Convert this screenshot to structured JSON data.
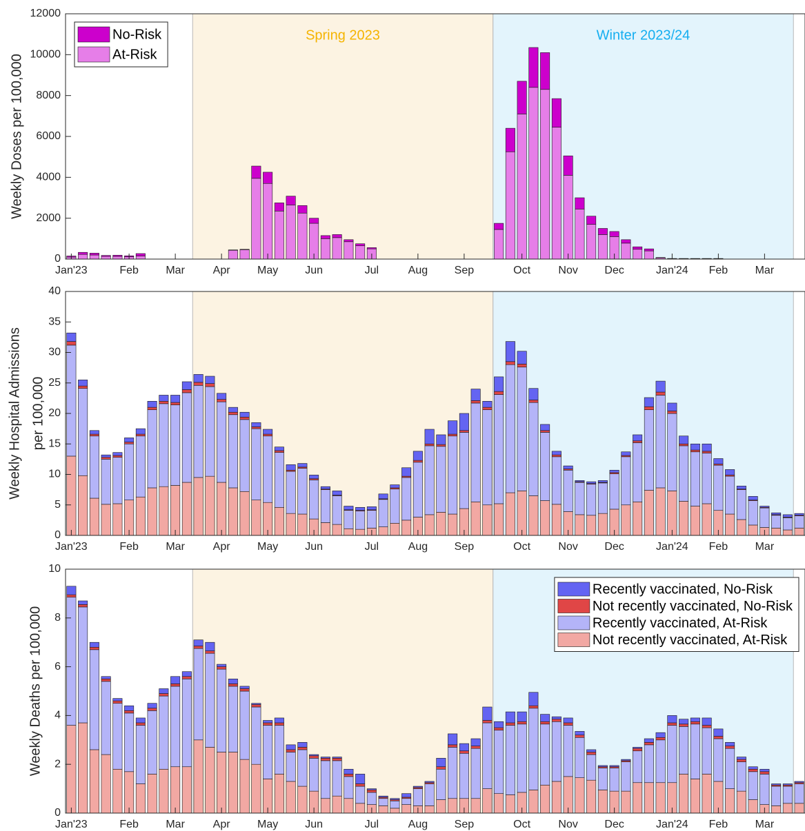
{
  "chart_data": [
    {
      "type": "bar",
      "stacked": true,
      "ylabel": "Weekly Doses per 100,000",
      "categories": [
        "Jan'23",
        null,
        null,
        null,
        null,
        "Feb",
        null,
        null,
        null,
        "Mar",
        null,
        null,
        null,
        "Apr",
        null,
        null,
        null,
        "May",
        null,
        null,
        null,
        "Jun",
        null,
        null,
        null,
        null,
        "Jul",
        null,
        null,
        null,
        "Aug",
        null,
        null,
        null,
        "Sep",
        null,
        null,
        null,
        null,
        "Oct",
        null,
        null,
        null,
        "Nov",
        null,
        null,
        null,
        "Dec",
        null,
        null,
        null,
        null,
        "Jan'24",
        null,
        null,
        null,
        "Feb",
        null,
        null,
        null,
        "Mar",
        null,
        null,
        null
      ],
      "series": [
        {
          "name": "At-Risk",
          "color": "#e67ee8",
          "values": [
            100,
            230,
            200,
            130,
            130,
            110,
            150,
            0,
            0,
            0,
            0,
            0,
            0,
            0,
            430,
            460,
            3950,
            3700,
            2350,
            2650,
            2250,
            1750,
            1000,
            1050,
            850,
            650,
            500,
            0,
            0,
            0,
            0,
            0,
            0,
            0,
            0,
            0,
            0,
            1450,
            5250,
            7100,
            8400,
            8300,
            6450,
            4100,
            2450,
            1700,
            1200,
            1100,
            780,
            480,
            400,
            60,
            20,
            20,
            20,
            20,
            20,
            0,
            0,
            0,
            0,
            0,
            0,
            0
          ]
        },
        {
          "name": "No-Risk",
          "color": "#cc00cc",
          "values": [
            50,
            100,
            90,
            50,
            60,
            50,
            120,
            0,
            0,
            0,
            0,
            0,
            0,
            0,
            20,
            20,
            600,
            550,
            400,
            430,
            370,
            250,
            150,
            150,
            100,
            100,
            60,
            0,
            0,
            0,
            0,
            0,
            0,
            0,
            0,
            0,
            0,
            300,
            1150,
            1600,
            1950,
            1800,
            1400,
            950,
            550,
            400,
            300,
            250,
            170,
            120,
            100,
            20,
            10,
            10,
            10,
            10,
            10,
            0,
            0,
            0,
            0,
            0,
            0,
            0
          ]
        }
      ],
      "ylim": [
        0,
        12000
      ],
      "yticks": [
        0,
        2000,
        4000,
        6000,
        8000,
        10000,
        12000
      ],
      "grid": false,
      "legend": "upper left",
      "periods": [
        {
          "label": "Spring 2023",
          "from": 11,
          "to": 36,
          "color": "#fcf3e2",
          "label_color": "#f5b400"
        },
        {
          "label": "Winter 2023/24",
          "from": 37,
          "to": 62,
          "color": "#e3f4fc",
          "label_color": "#15aef0"
        }
      ]
    },
    {
      "type": "bar",
      "stacked": true,
      "ylabel": [
        "Weekly Hospital Admissions",
        "per 100,000"
      ],
      "categories": [
        "Jan'23",
        null,
        null,
        null,
        null,
        "Feb",
        null,
        null,
        null,
        "Mar",
        null,
        null,
        null,
        "Apr",
        null,
        null,
        null,
        "May",
        null,
        null,
        null,
        "Jun",
        null,
        null,
        null,
        null,
        "Jul",
        null,
        null,
        null,
        "Aug",
        null,
        null,
        null,
        "Sep",
        null,
        null,
        null,
        null,
        "Oct",
        null,
        null,
        null,
        "Nov",
        null,
        null,
        null,
        "Dec",
        null,
        null,
        null,
        null,
        "Jan'24",
        null,
        null,
        null,
        "Feb",
        null,
        null,
        null,
        "Mar",
        null,
        null,
        null
      ],
      "series": [
        {
          "color": "#f2a8a3",
          "values": [
            13,
            9.8,
            6.1,
            5.1,
            5.2,
            5.8,
            6.3,
            7.8,
            8.0,
            8.2,
            8.7,
            9.5,
            9.7,
            8.7,
            7.8,
            7.2,
            5.8,
            5.4,
            4.6,
            3.6,
            3.5,
            2.7,
            2.1,
            1.8,
            1.1,
            1.0,
            1.2,
            1.4,
            2.0,
            2.5,
            3.0,
            3.4,
            3.8,
            3.5,
            4.4,
            5.5,
            5.0,
            5.2,
            7.0,
            7.3,
            6.5,
            5.7,
            5.1,
            3.9,
            3.4,
            3.3,
            3.6,
            4.3,
            5.0,
            5.5,
            7.4,
            7.8,
            7.3,
            5.6,
            4.8,
            5.2,
            4.1,
            3.5,
            2.6,
            1.7,
            1.3,
            1.2,
            0.9,
            1.2
          ]
        },
        {
          "color": "#b4b4f8",
          "values": [
            18.2,
            14.3,
            10.2,
            7.4,
            7.6,
            9.2,
            10.0,
            12.8,
            13.6,
            13.2,
            14.7,
            15.1,
            14.7,
            13.2,
            12.0,
            11.8,
            11.7,
            10.9,
            9.0,
            6.9,
            7.5,
            6.4,
            5.4,
            4.7,
            3.0,
            3.0,
            2.9,
            4.5,
            5.6,
            7.0,
            9.0,
            11.3,
            10.8,
            12.8,
            12.5,
            16.2,
            15.6,
            17.9,
            21.0,
            20.3,
            15.3,
            11.2,
            7.8,
            6.8,
            5.3,
            5.1,
            5.0,
            5.8,
            7.9,
            9.7,
            13.2,
            15.2,
            12.7,
            9.1,
            8.9,
            8.3,
            7.4,
            6.2,
            4.9,
            4.0,
            3.2,
            2.1,
            2.0,
            2.0
          ]
        },
        {
          "color": "#e04646",
          "values": [
            0.6,
            0.4,
            0.3,
            0.3,
            0.3,
            0.3,
            0.3,
            0.4,
            0.4,
            0.4,
            0.5,
            0.5,
            0.5,
            0.4,
            0.4,
            0.4,
            0.3,
            0.3,
            0.3,
            0.2,
            0.2,
            0.2,
            0.1,
            0.1,
            0.1,
            0.1,
            0.1,
            0.1,
            0.2,
            0.2,
            0.3,
            0.3,
            0.3,
            0.3,
            0.3,
            0.4,
            0.4,
            0.5,
            0.5,
            0.5,
            0.4,
            0.3,
            0.3,
            0.2,
            0.1,
            0.1,
            0.1,
            0.2,
            0.2,
            0.3,
            0.5,
            0.5,
            0.4,
            0.3,
            0.3,
            0.3,
            0.2,
            0.2,
            0.1,
            0.1,
            0.1,
            0.1,
            0.1,
            0.1
          ]
        },
        {
          "color": "#6464f2",
          "values": [
            1.4,
            1.0,
            0.6,
            0.4,
            0.5,
            0.7,
            0.9,
            1.0,
            1.0,
            1.2,
            1.3,
            1.3,
            1.2,
            1.0,
            0.8,
            0.8,
            0.7,
            0.8,
            0.6,
            0.9,
            0.6,
            0.6,
            0.4,
            0.7,
            0.6,
            0.5,
            0.5,
            0.8,
            0.5,
            1.4,
            1.5,
            2.4,
            1.6,
            2.2,
            2.8,
            1.9,
            1.0,
            2.4,
            3.3,
            2.1,
            1.9,
            1.0,
            0.6,
            0.5,
            0.2,
            0.3,
            0.3,
            0.4,
            0.6,
            1.0,
            1.5,
            1.8,
            1.3,
            1.3,
            1.0,
            1.2,
            0.9,
            0.9,
            0.5,
            0.6,
            0.2,
            0.3,
            0.4,
            0.3
          ]
        }
      ],
      "ylim": [
        0,
        40
      ],
      "yticks": [
        0,
        5,
        10,
        15,
        20,
        25,
        30,
        35,
        40
      ],
      "grid": false,
      "periods": [
        {
          "from": 11,
          "to": 36,
          "color": "#fcf3e2"
        },
        {
          "from": 37,
          "to": 62,
          "color": "#e3f4fc"
        }
      ]
    },
    {
      "type": "bar",
      "stacked": true,
      "ylabel": "Weekly Deaths per 100,000",
      "categories": [
        "Jan'23",
        null,
        null,
        null,
        null,
        "Feb",
        null,
        null,
        null,
        "Mar",
        null,
        null,
        null,
        "Apr",
        null,
        null,
        null,
        "May",
        null,
        null,
        null,
        "Jun",
        null,
        null,
        null,
        null,
        "Jul",
        null,
        null,
        null,
        "Aug",
        null,
        null,
        null,
        "Sep",
        null,
        null,
        null,
        null,
        "Oct",
        null,
        null,
        null,
        "Nov",
        null,
        null,
        null,
        "Dec",
        null,
        null,
        null,
        null,
        "Jan'24",
        null,
        null,
        null,
        "Feb",
        null,
        null,
        null,
        "Mar",
        null,
        null,
        null
      ],
      "series": [
        {
          "name": "Not recently vaccinated, At-Risk",
          "color": "#f2a8a3",
          "values": [
            3.6,
            3.7,
            2.6,
            2.4,
            1.8,
            1.7,
            1.2,
            1.6,
            1.8,
            1.9,
            1.9,
            3.0,
            2.7,
            2.5,
            2.5,
            2.2,
            2.0,
            1.4,
            1.6,
            1.3,
            1.1,
            0.9,
            0.6,
            0.7,
            0.6,
            0.4,
            0.35,
            0.3,
            0.2,
            0.35,
            0.3,
            0.3,
            0.55,
            0.6,
            0.6,
            0.6,
            1.0,
            0.8,
            0.75,
            0.85,
            0.95,
            1.15,
            1.3,
            1.5,
            1.45,
            1.35,
            0.95,
            0.9,
            0.9,
            1.25,
            1.25,
            1.25,
            1.25,
            1.6,
            1.4,
            1.6,
            1.3,
            1.0,
            0.9,
            0.55,
            0.35,
            0.3,
            0.4,
            0.4
          ]
        },
        {
          "name": "Recently vaccinated, At-Risk",
          "color": "#b4b4f8",
          "values": [
            5.25,
            4.75,
            4.1,
            3.0,
            2.7,
            2.4,
            2.4,
            2.6,
            3.0,
            3.3,
            3.6,
            3.75,
            3.85,
            3.4,
            2.7,
            2.8,
            2.35,
            2.2,
            2.0,
            1.2,
            1.5,
            1.35,
            1.55,
            1.45,
            0.9,
            0.7,
            0.5,
            0.3,
            0.3,
            0.25,
            0.7,
            0.9,
            1.25,
            2.1,
            1.85,
            2.05,
            2.7,
            2.6,
            2.85,
            2.8,
            3.35,
            2.5,
            2.45,
            2.1,
            1.65,
            1.05,
            0.9,
            0.95,
            1.2,
            1.3,
            1.55,
            1.75,
            2.35,
            1.95,
            2.25,
            1.9,
            1.75,
            1.65,
            1.2,
            1.15,
            1.25,
            0.8,
            0.7,
            0.8
          ]
        },
        {
          "name": "Not recently vaccinated, No-Risk",
          "color": "#e04646",
          "values": [
            0.1,
            0.1,
            0.1,
            0.1,
            0.1,
            0.1,
            0.1,
            0.1,
            0.1,
            0.1,
            0.1,
            0.1,
            0.1,
            0.1,
            0.1,
            0.1,
            0.1,
            0.1,
            0.1,
            0.1,
            0.1,
            0.1,
            0.1,
            0.1,
            0.1,
            0.1,
            0.1,
            0.05,
            0.05,
            0.05,
            0.05,
            0.05,
            0.1,
            0.1,
            0.1,
            0.1,
            0.1,
            0.1,
            0.1,
            0.1,
            0.1,
            0.1,
            0.1,
            0.1,
            0.1,
            0.1,
            0.05,
            0.05,
            0.05,
            0.1,
            0.1,
            0.1,
            0.1,
            0.1,
            0.1,
            0.1,
            0.1,
            0.1,
            0.1,
            0.1,
            0.1,
            0.05,
            0.05,
            0.05
          ]
        },
        {
          "name": "Recently vaccinated, No-Risk",
          "color": "#6464f2",
          "values": [
            0.35,
            0.15,
            0.2,
            0.1,
            0.1,
            0.2,
            0.2,
            0.2,
            0.2,
            0.3,
            0.2,
            0.25,
            0.35,
            0.1,
            0.2,
            0.1,
            0.05,
            0.1,
            0.2,
            0.2,
            0.2,
            0.05,
            0.05,
            0.05,
            0.2,
            0.4,
            0.05,
            0.05,
            0.05,
            0.15,
            0.05,
            0.05,
            0.35,
            0.45,
            0.3,
            0.3,
            0.55,
            0.25,
            0.45,
            0.4,
            0.55,
            0.3,
            0.1,
            0.2,
            0.15,
            0.1,
            0.05,
            0.05,
            0.05,
            0.05,
            0.15,
            0.2,
            0.3,
            0.2,
            0.15,
            0.3,
            0.3,
            0.15,
            0.1,
            0.1,
            0.1,
            0.05,
            0.05,
            0.05
          ]
        }
      ],
      "ylim": [
        0,
        10
      ],
      "yticks": [
        0,
        2,
        4,
        6,
        8,
        10
      ],
      "grid": false,
      "legend": "upper right",
      "periods": [
        {
          "from": 11,
          "to": 36,
          "color": "#fcf3e2"
        },
        {
          "from": 37,
          "to": 62,
          "color": "#e3f4fc"
        }
      ]
    }
  ]
}
